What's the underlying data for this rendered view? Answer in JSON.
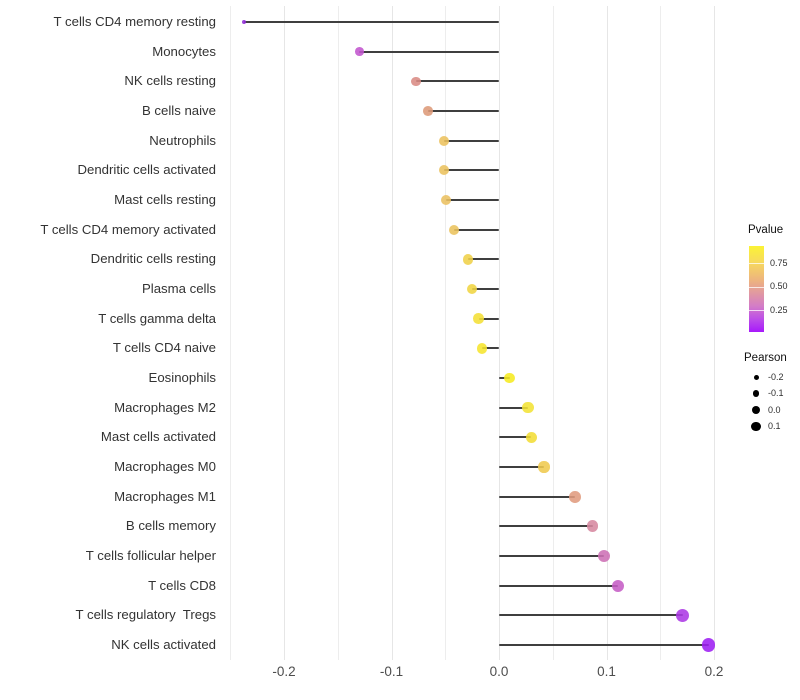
{
  "chart_data": {
    "type": "scatter",
    "variant": "lollipop",
    "title": "",
    "xlabel": "",
    "ylabel": "",
    "xlim": [
      -0.26,
      0.22
    ],
    "x_ticks": [
      "-0.2",
      "-0.1",
      "0.0",
      "0.1",
      "0.2"
    ],
    "x_tick_values": [
      -0.2,
      -0.1,
      0.0,
      0.1,
      0.2
    ],
    "grid_step": 0.05,
    "grid_on": true,
    "baseline": 0.0,
    "categories": [
      "T cells CD4 memory resting",
      "Monocytes",
      "NK cells resting",
      "B cells naive",
      "Neutrophils",
      "Dendritic cells activated",
      "Mast cells resting",
      "T cells CD4 memory activated",
      "Dendritic cells resting",
      "Plasma cells",
      "T cells gamma delta",
      "T cells CD4 naive",
      "Eosinophils",
      "Macrophages M2",
      "Mast cells activated",
      "Macrophages M0",
      "Macrophages M1",
      "B cells memory",
      "T cells follicular helper",
      "T cells CD8",
      "T cells regulatory  Tregs",
      "NK cells activated"
    ],
    "series": [
      {
        "name": "Pearson",
        "values": [
          -0.237,
          -0.13,
          -0.077,
          -0.066,
          -0.051,
          -0.051,
          -0.049,
          -0.042,
          -0.029,
          -0.025,
          -0.019,
          -0.016,
          0.01,
          0.027,
          0.03,
          0.042,
          0.071,
          0.087,
          0.098,
          0.111,
          0.171,
          0.195
        ]
      }
    ],
    "point_colors": [
      "#8F2BD6",
      "#C155CE",
      "#D98B84",
      "#DD9A79",
      "#ECC15E",
      "#EBC25F",
      "#EAC061",
      "#EBC35D",
      "#EFD049",
      "#F0D542",
      "#F4DF36",
      "#F6E52E",
      "#F6EB20",
      "#F3E335",
      "#F3DD35",
      "#EFC94E",
      "#E09B7E",
      "#D6879F",
      "#CD70B5",
      "#C55CC5",
      "#AC39E5",
      "#9D1FF2"
    ],
    "stem_color": "#3f3f3f",
    "legend_position": "right"
  },
  "legend_pvalue": {
    "title": "Pvalue",
    "tick_labels": [
      "0.75",
      "0.50",
      "0.25"
    ],
    "tick_values": [
      0.75,
      0.5,
      0.25
    ],
    "range_top": 0.93,
    "range_bottom": 0.02,
    "gradient_stops": [
      "#FBF335",
      "#F7DB5C",
      "#EDB37F",
      "#E098A2",
      "#D37CC7",
      "#BC4EE8",
      "#A719FB"
    ],
    "gradient_positions": [
      0,
      18,
      40,
      55,
      70,
      85,
      100
    ]
  },
  "legend_pearson": {
    "title": "Pearson",
    "labels": [
      "-0.2",
      "-0.1",
      "0.0",
      "0.1"
    ],
    "values": [
      -0.2,
      -0.1,
      0.0,
      0.1
    ],
    "dot_diameters": [
      5,
      6.5,
      8,
      9.5
    ],
    "dot_color": "#000000"
  }
}
